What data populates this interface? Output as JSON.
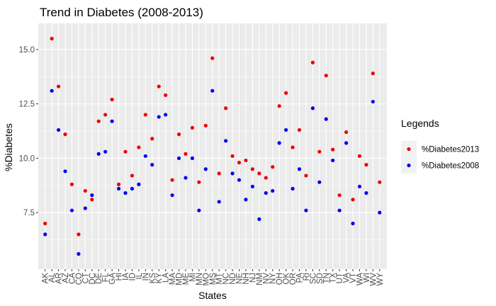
{
  "chart_data": {
    "type": "scatter",
    "title": "Trend in Diabetes (2008-2013)",
    "xlabel": "States",
    "ylabel": "%Diabetes",
    "ylim": [
      4.9,
      16.2
    ],
    "yticks": [
      7.5,
      10.0,
      12.5,
      15.0
    ],
    "ytick_labels": [
      "7.5",
      "10.0",
      "12.5",
      "15.0"
    ],
    "grid": true,
    "legend": {
      "title": "Legends",
      "position": "right"
    },
    "categories": [
      "AK",
      "AL",
      "AR",
      "AZ",
      "CA",
      "CO",
      "CT",
      "DC",
      "DE",
      "FL",
      "GA",
      "HI",
      "IA",
      "ID",
      "IL",
      "IN",
      "KS",
      "KY",
      "LA",
      "MA",
      "MD",
      "ME",
      "MI",
      "MN",
      "MO",
      "MS",
      "MT",
      "NC",
      "ND",
      "NE",
      "NH",
      "NJ",
      "NM",
      "NV",
      "NY",
      "OH",
      "OK",
      "OR",
      "PA",
      "RI",
      "SC",
      "SD",
      "TN",
      "TX",
      "UT",
      "VA",
      "VT",
      "WA",
      "WI",
      "WV",
      "WY"
    ],
    "series": [
      {
        "name": "%Diabetes2013",
        "color": "#ee0000",
        "values": [
          7.0,
          15.5,
          13.3,
          11.1,
          8.8,
          6.5,
          8.5,
          8.1,
          11.7,
          12.0,
          12.7,
          8.8,
          10.3,
          9.2,
          10.5,
          12.0,
          10.9,
          13.3,
          12.9,
          9.0,
          11.1,
          10.2,
          11.4,
          8.9,
          11.5,
          14.6,
          9.3,
          12.3,
          10.1,
          9.8,
          9.9,
          9.5,
          9.3,
          9.1,
          9.6,
          12.4,
          13.0,
          10.5,
          11.3,
          9.2,
          14.4,
          10.3,
          13.8,
          10.4,
          8.3,
          11.2,
          8.1,
          10.1,
          9.7,
          13.9,
          8.9
        ]
      },
      {
        "name": "%Diabetes2008",
        "color": "#0000ee",
        "values": [
          6.5,
          13.1,
          11.3,
          9.4,
          7.6,
          5.6,
          7.7,
          8.3,
          10.2,
          10.3,
          11.7,
          8.6,
          8.4,
          8.6,
          8.8,
          10.1,
          9.7,
          11.9,
          12.0,
          8.3,
          10.0,
          9.1,
          10.0,
          7.6,
          9.5,
          13.1,
          8.0,
          10.8,
          9.3,
          9.0,
          8.1,
          8.7,
          7.2,
          8.4,
          8.5,
          10.7,
          11.3,
          8.6,
          9.5,
          7.6,
          12.3,
          8.9,
          11.8,
          9.9,
          7.6,
          10.7,
          7.0,
          8.7,
          8.4,
          12.6,
          7.5
        ]
      }
    ]
  }
}
